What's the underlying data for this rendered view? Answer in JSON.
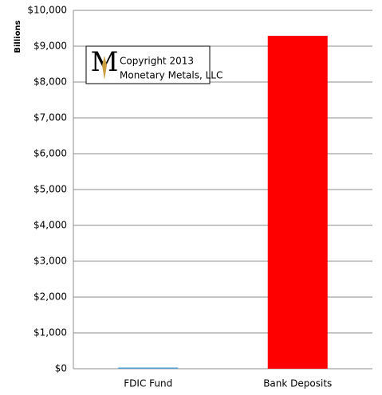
{
  "chart_data": {
    "type": "bar",
    "y_label": "Billions",
    "categories": [
      "FDIC Fund",
      "Bank Deposits"
    ],
    "values": [
      33,
      9290
    ],
    "colors": [
      "#4f9fd6",
      "#ff0000"
    ],
    "ylim": [
      0,
      10000
    ],
    "yticks": [
      {
        "value": 0,
        "label": "$0"
      },
      {
        "value": 1000,
        "label": "$1,000"
      },
      {
        "value": 2000,
        "label": "$2,000"
      },
      {
        "value": 3000,
        "label": "$3,000"
      },
      {
        "value": 4000,
        "label": "$4,000"
      },
      {
        "value": 5000,
        "label": "$5,000"
      },
      {
        "value": 6000,
        "label": "$6,000"
      },
      {
        "value": 7000,
        "label": "$7,000"
      },
      {
        "value": 8000,
        "label": "$8,000"
      },
      {
        "value": 9000,
        "label": "$9,000"
      },
      {
        "value": 10000,
        "label": "$10,000"
      }
    ],
    "grid": true,
    "annotations": [
      "Copyright 2013",
      "Monetary Metals, LLC"
    ]
  }
}
